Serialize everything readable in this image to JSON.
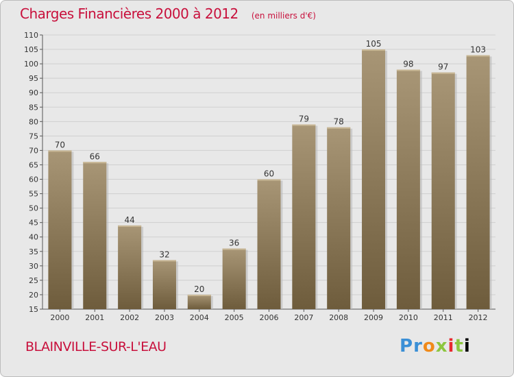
{
  "header": {
    "title": "Charges Financières 2000 à 2012",
    "subtitle": "(en milliers d'€)"
  },
  "footer": {
    "town": "BLAINVILLE-SUR-L'EAU",
    "logo_text": "Proxiti"
  },
  "colors": {
    "title": "#c8103c",
    "bar_light": "#a89676",
    "bar_dark": "#6e5c3c",
    "background": "#e8e8e8"
  },
  "chart_data": {
    "type": "bar",
    "categories": [
      "2000",
      "2001",
      "2002",
      "2003",
      "2004",
      "2005",
      "2006",
      "2007",
      "2008",
      "2009",
      "2010",
      "2011",
      "2012"
    ],
    "values": [
      70,
      66,
      44,
      32,
      20,
      36,
      60,
      79,
      78,
      105,
      98,
      97,
      103
    ],
    "title": "Charges Financières 2000 à 2012",
    "subtitle": "(en milliers d'€)",
    "xlabel": "",
    "ylabel": "",
    "ylim": [
      15,
      110
    ],
    "yticks": [
      15,
      20,
      25,
      30,
      35,
      40,
      45,
      50,
      55,
      60,
      65,
      70,
      75,
      80,
      85,
      90,
      95,
      100,
      105,
      110
    ],
    "grid": true
  }
}
